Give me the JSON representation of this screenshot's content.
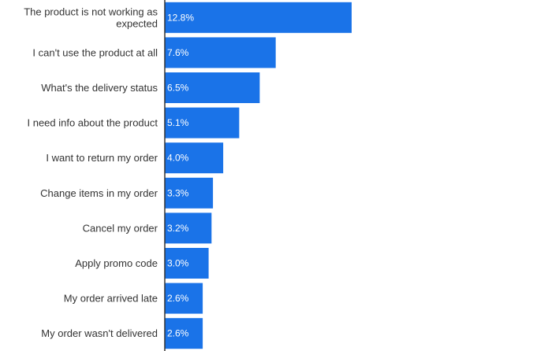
{
  "chart_data": {
    "type": "bar",
    "orientation": "horizontal",
    "categories": [
      "The product is not working as expected",
      "I can't use the product at all",
      "What's the delivery status",
      "I need info about the product",
      "I want to return my order",
      "Change items in my order",
      "Cancel my order",
      "Apply promo code",
      "My order arrived late",
      "My order wasn't delivered"
    ],
    "category_lines": [
      [
        "The product is not working as",
        "expected"
      ],
      [
        "I can't use the product at all"
      ],
      [
        "What's the delivery status"
      ],
      [
        "I need info about the product"
      ],
      [
        "I want to return my order"
      ],
      [
        "Change items in my order"
      ],
      [
        "Cancel my order"
      ],
      [
        "Apply promo code"
      ],
      [
        "My order arrived late"
      ],
      [
        "My order wasn't delivered"
      ]
    ],
    "values": [
      12.8,
      7.6,
      6.5,
      5.1,
      4.0,
      3.3,
      3.2,
      3.0,
      2.6,
      2.6
    ],
    "value_labels": [
      "12.8%",
      "7.6%",
      "6.5%",
      "5.1%",
      "4.0%",
      "3.3%",
      "3.2%",
      "3.0%",
      "2.6%",
      "2.6%"
    ],
    "xlim": [
      0,
      27
    ],
    "bar_color": "#1a73e8",
    "axis_color": "#333333",
    "label_color": "#333333",
    "value_label_color": "#ffffff",
    "grid": false,
    "legend": "none"
  }
}
